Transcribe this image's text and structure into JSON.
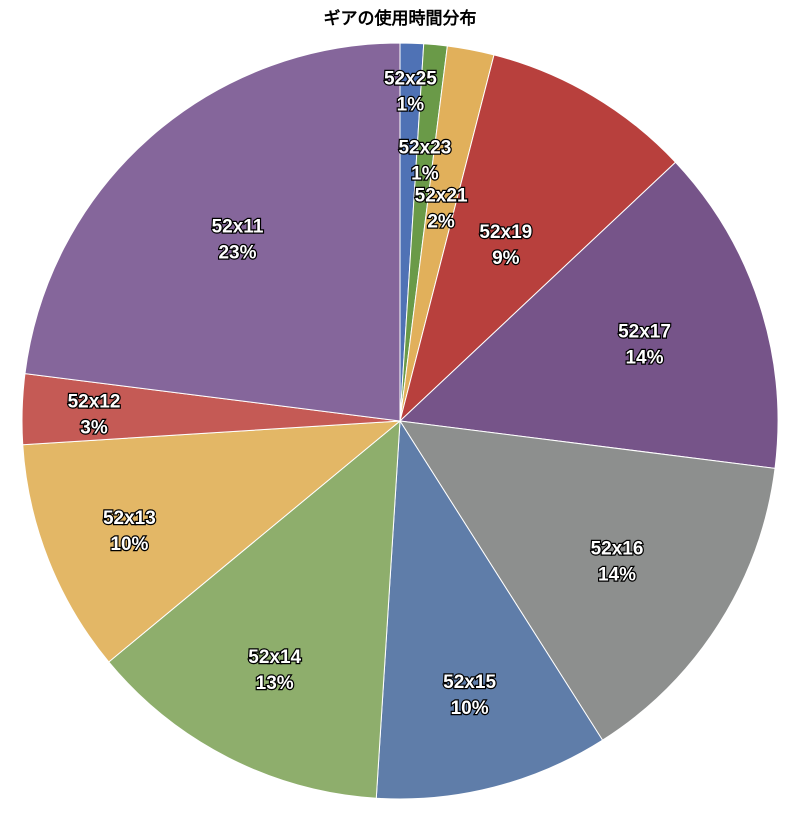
{
  "chart_data": {
    "type": "pie",
    "title": "ギアの使用時間分布",
    "start": "12 o'clock",
    "direction": "clockwise",
    "slices": [
      {
        "label": "52x25",
        "value": 1,
        "percent_label": "1%",
        "color": "#4f72b5"
      },
      {
        "label": "52x23",
        "value": 1,
        "percent_label": "1%",
        "color": "#6a9a48"
      },
      {
        "label": "52x21",
        "value": 2,
        "percent_label": "2%",
        "color": "#e1b05b"
      },
      {
        "label": "52x19",
        "value": 9,
        "percent_label": "9%",
        "color": "#b8403d"
      },
      {
        "label": "52x17",
        "value": 14,
        "percent_label": "14%",
        "color": "#765489"
      },
      {
        "label": "52x16",
        "value": 14,
        "percent_label": "14%",
        "color": "#8d8f8e"
      },
      {
        "label": "52x15",
        "value": 10,
        "percent_label": "10%",
        "color": "#5f7da9"
      },
      {
        "label": "52x14",
        "value": 13,
        "percent_label": "13%",
        "color": "#8eae6c"
      },
      {
        "label": "52x13",
        "value": 10,
        "percent_label": "10%",
        "color": "#e3b766"
      },
      {
        "label": "52x12",
        "value": 3,
        "percent_label": "3%",
        "color": "#c55a55"
      },
      {
        "label": "52x11",
        "value": 23,
        "percent_label": "23%",
        "color": "#85669b"
      }
    ]
  }
}
